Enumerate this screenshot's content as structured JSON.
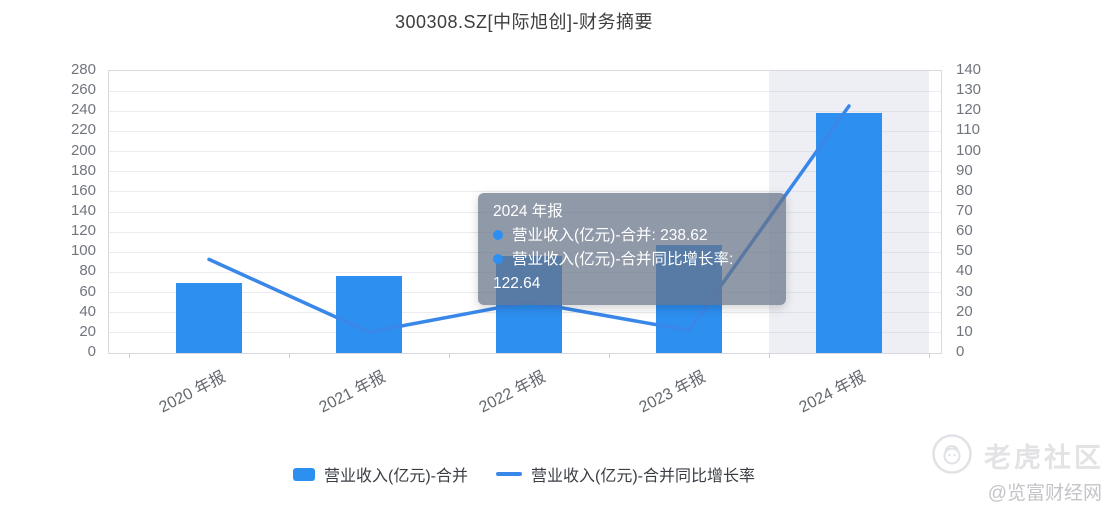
{
  "chart_data": {
    "type": "bar",
    "title": "300308.SZ[中际旭创]-财务摘要",
    "categories": [
      "2020 年报",
      "2021 年报",
      "2022 年报",
      "2023 年报",
      "2024 年报"
    ],
    "series": [
      {
        "name": "营业收入(亿元)-合并",
        "type": "bar",
        "axis": "left",
        "color": "#2D8FF0",
        "values": [
          69.7,
          76.95,
          96.42,
          107.18,
          238.62
        ]
      },
      {
        "name": "营业收入(亿元)-合并同比增长率",
        "type": "line",
        "axis": "right",
        "color": "#3A87EA",
        "values": [
          46.49,
          10.4,
          25.3,
          11.16,
          122.64
        ]
      }
    ],
    "left_axis": {
      "min": 0,
      "max": 280,
      "step": 20
    },
    "right_axis": {
      "min": 0,
      "max": 140,
      "step": 10
    },
    "grid": true,
    "legend_position": "bottom",
    "highlighted_category": "2024 年报"
  },
  "tooltip": {
    "title": "2024 年报",
    "items": [
      {
        "label": "营业收入(亿元)-合并",
        "value": "238.62"
      },
      {
        "label": "营业收入(亿元)-合并同比增长率",
        "value": "122.64"
      }
    ]
  },
  "watermark": {
    "community": "老虎社区",
    "source": "@览富财经网"
  },
  "colors": {
    "bar": "#2D8FF0",
    "line": "#3A87EA",
    "highlight_band": "rgba(199,206,223,0.33)",
    "tooltip_bg": "rgba(103,115,136,0.73)"
  }
}
